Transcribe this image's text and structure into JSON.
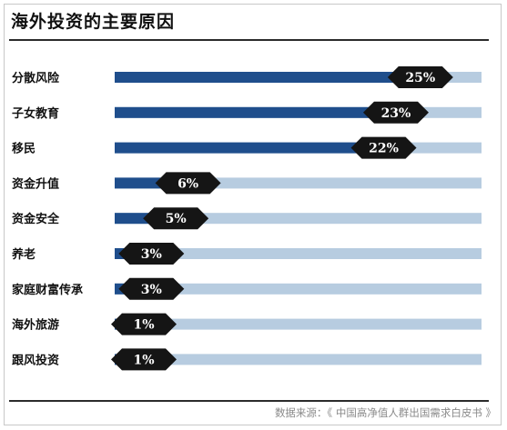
{
  "header": {
    "title": "海外投资的主要原因"
  },
  "footer": {
    "source": "数据来源：《 中国高净值人群出国需求白皮书 》"
  },
  "colors": {
    "bar_fill": "#1f4e8c",
    "bar_track": "#b7cce0",
    "badge": "#151515",
    "rule": "#2b2b2b"
  },
  "chart_data": {
    "type": "bar",
    "orientation": "horizontal",
    "title": "海外投资的主要原因",
    "categories": [
      "分散风险",
      "子女教育",
      "移民",
      "资金升值",
      "资金安全",
      "养老",
      "家庭财富传承",
      "海外旅游",
      "跟风投资"
    ],
    "values": [
      25,
      23,
      22,
      6,
      5,
      3,
      3,
      1,
      1
    ],
    "value_labels": [
      "25%",
      "23%",
      "22%",
      "6%",
      "5%",
      "3%",
      "3%",
      "1%",
      "1%"
    ],
    "unit": "%",
    "xlim": [
      0,
      30
    ],
    "grid": false,
    "legend": "none"
  }
}
